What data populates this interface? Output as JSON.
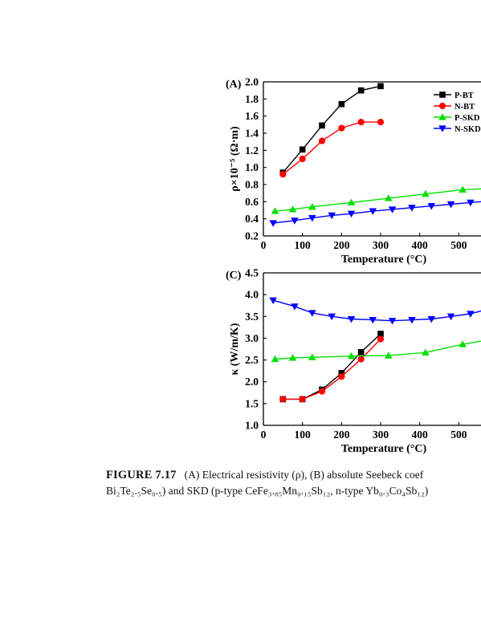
{
  "chart_data": [
    {
      "type": "line",
      "panel_label": "(A)",
      "xlabel": "Temperature  (°C)",
      "ylabel": "ρ×10⁻⁵ (Ω·m)",
      "xlim": [
        0,
        600
      ],
      "ylim": [
        0.2,
        2.0
      ],
      "xticks": [
        "0",
        "100",
        "200",
        "300",
        "400",
        "500",
        "60"
      ],
      "yticks": [
        "0.2",
        "0.4",
        "0.6",
        "0.8",
        "1.0",
        "1.2",
        "1.4",
        "1.6",
        "1.8",
        "2.0"
      ],
      "legend_position": "top-right",
      "series": [
        {
          "name": "P-BT",
          "color": "#000000",
          "marker": "square",
          "x": [
            50,
            100,
            150,
            200,
            250,
            300
          ],
          "y": [
            0.94,
            1.21,
            1.49,
            1.74,
            1.9,
            1.95
          ]
        },
        {
          "name": "N-BT",
          "color": "#ff0000",
          "marker": "circle",
          "x": [
            50,
            100,
            150,
            200,
            250,
            300
          ],
          "y": [
            0.92,
            1.1,
            1.31,
            1.46,
            1.53,
            1.53
          ]
        },
        {
          "name": "P-SKD",
          "color": "#00e000",
          "marker": "triangle-up",
          "x": [
            30,
            75,
            125,
            225,
            320,
            415,
            510,
            600
          ],
          "y": [
            0.49,
            0.51,
            0.54,
            0.59,
            0.64,
            0.69,
            0.74,
            0.76
          ]
        },
        {
          "name": "N-SKD",
          "color": "#0000ff",
          "marker": "triangle-down",
          "x": [
            25,
            80,
            125,
            175,
            225,
            280,
            330,
            380,
            430,
            480,
            530,
            580
          ],
          "y": [
            0.35,
            0.38,
            0.41,
            0.44,
            0.46,
            0.49,
            0.51,
            0.53,
            0.55,
            0.57,
            0.59,
            0.61
          ]
        }
      ]
    },
    {
      "type": "line",
      "panel_label": "(C)",
      "xlabel": "Temperature (°C)",
      "ylabel": "κ (W/m/K)",
      "xlim": [
        0,
        600
      ],
      "ylim": [
        1.0,
        4.5
      ],
      "xticks": [
        "0",
        "100",
        "200",
        "300",
        "400",
        "500",
        "60"
      ],
      "yticks": [
        "1.0",
        "1.5",
        "2.0",
        "2.5",
        "3.0",
        "3.5",
        "4.0",
        "4.5"
      ],
      "series": [
        {
          "name": "P-BT",
          "color": "#000000",
          "marker": "square",
          "x": [
            50,
            100,
            150,
            200,
            250,
            300
          ],
          "y": [
            1.6,
            1.6,
            1.82,
            2.2,
            2.68,
            3.1
          ]
        },
        {
          "name": "N-BT",
          "color": "#ff0000",
          "marker": "circle",
          "x": [
            50,
            100,
            150,
            200,
            250,
            300
          ],
          "y": [
            1.6,
            1.6,
            1.78,
            2.12,
            2.52,
            2.98
          ]
        },
        {
          "name": "P-SKD",
          "color": "#00e000",
          "marker": "triangle-up",
          "x": [
            30,
            75,
            125,
            225,
            320,
            415,
            510,
            600
          ],
          "y": [
            2.52,
            2.55,
            2.56,
            2.59,
            2.6,
            2.67,
            2.86,
            3.0
          ]
        },
        {
          "name": "N-SKD",
          "color": "#0000ff",
          "marker": "triangle-down",
          "x": [
            25,
            80,
            125,
            175,
            225,
            280,
            330,
            380,
            430,
            480,
            530,
            580
          ],
          "y": [
            3.87,
            3.73,
            3.58,
            3.5,
            3.44,
            3.42,
            3.4,
            3.42,
            3.44,
            3.5,
            3.56,
            3.68
          ]
        }
      ]
    }
  ],
  "caption": {
    "label": "FIGURE 7.17",
    "line1": "(A) Electrical resistivity (ρ), (B) absolute Seebeck coef",
    "line2": "Bi₂Te₂.₅Se₀.₅) and SKD (p-type CeFe₃.₈₅Mn₀.₁₅Sb₁₂, n-type Yb₀.₃Co₄Sb₁₂)"
  }
}
